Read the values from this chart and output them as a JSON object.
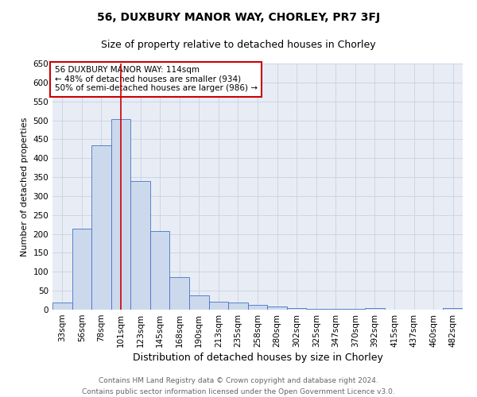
{
  "title": "56, DUXBURY MANOR WAY, CHORLEY, PR7 3FJ",
  "subtitle": "Size of property relative to detached houses in Chorley",
  "xlabel": "Distribution of detached houses by size in Chorley",
  "ylabel": "Number of detached properties",
  "categories": [
    "33sqm",
    "56sqm",
    "78sqm",
    "101sqm",
    "123sqm",
    "145sqm",
    "168sqm",
    "190sqm",
    "213sqm",
    "235sqm",
    "258sqm",
    "280sqm",
    "302sqm",
    "325sqm",
    "347sqm",
    "370sqm",
    "392sqm",
    "415sqm",
    "437sqm",
    "460sqm",
    "482sqm"
  ],
  "values": [
    18,
    213,
    435,
    503,
    340,
    208,
    86,
    38,
    20,
    18,
    13,
    8,
    5,
    3,
    3,
    3,
    5,
    1,
    1,
    1,
    5
  ],
  "bar_color": "#ccd9ed",
  "bar_edge_color": "#4472c4",
  "red_line_x": 3.0,
  "annotation_text": "56 DUXBURY MANOR WAY: 114sqm\n← 48% of detached houses are smaller (934)\n50% of semi-detached houses are larger (986) →",
  "annotation_box_color": "#ffffff",
  "annotation_box_edge": "#cc0000",
  "ylim": [
    0,
    650
  ],
  "yticks": [
    0,
    50,
    100,
    150,
    200,
    250,
    300,
    350,
    400,
    450,
    500,
    550,
    600,
    650
  ],
  "grid_color": "#cdd5e5",
  "footnote": "Contains HM Land Registry data © Crown copyright and database right 2024.\nContains public sector information licensed under the Open Government Licence v3.0.",
  "title_fontsize": 10,
  "subtitle_fontsize": 9,
  "xlabel_fontsize": 9,
  "ylabel_fontsize": 8,
  "tick_fontsize": 7.5,
  "annotation_fontsize": 7.5,
  "footnote_fontsize": 6.5
}
